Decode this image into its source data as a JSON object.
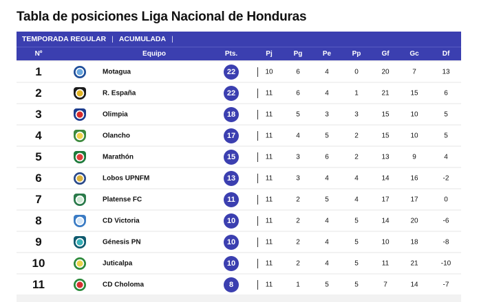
{
  "title": "Tabla de posiciones Liga Nacional de Honduras",
  "tabs": [
    {
      "label": "TEMPORADA REGULAR"
    },
    {
      "label": "ACUMULADA"
    }
  ],
  "tab_separator": "|",
  "columns": {
    "pos": "Nº",
    "team": "Equipo",
    "pts": "Pts.",
    "pj": "Pj",
    "pg": "Pg",
    "pe": "Pe",
    "pp": "Pp",
    "gf": "Gf",
    "gc": "Gc",
    "df": "Df"
  },
  "accent_color": "#3b3fb0",
  "rows": [
    {
      "pos": "1",
      "team": "Motagua",
      "pts": "22",
      "pj": "10",
      "pg": "6",
      "pe": "4",
      "pp": "0",
      "gf": "20",
      "gc": "7",
      "df": "13",
      "crest": {
        "c1": "#1f4f9a",
        "c2": "#6aa7de",
        "shape": "circle"
      }
    },
    {
      "pos": "2",
      "team": "R. España",
      "pts": "22",
      "pj": "11",
      "pg": "6",
      "pe": "4",
      "pp": "1",
      "gf": "21",
      "gc": "15",
      "df": "6",
      "crest": {
        "c1": "#1b1b1b",
        "c2": "#e2b422",
        "shape": "shield"
      }
    },
    {
      "pos": "3",
      "team": "Olimpia",
      "pts": "18",
      "pj": "11",
      "pg": "5",
      "pe": "3",
      "pp": "3",
      "gf": "15",
      "gc": "10",
      "df": "5",
      "crest": {
        "c1": "#1c3c8e",
        "c2": "#d62a2a",
        "shape": "shield"
      }
    },
    {
      "pos": "4",
      "team": "Olancho",
      "pts": "17",
      "pj": "11",
      "pg": "4",
      "pe": "5",
      "pp": "2",
      "gf": "15",
      "gc": "10",
      "df": "5",
      "crest": {
        "c1": "#3d8a3d",
        "c2": "#f2d24b",
        "shape": "shield"
      }
    },
    {
      "pos": "5",
      "team": "Marathón",
      "pts": "15",
      "pj": "11",
      "pg": "3",
      "pe": "6",
      "pp": "2",
      "gf": "13",
      "gc": "9",
      "df": "4",
      "crest": {
        "c1": "#1d7a3a",
        "c2": "#e03b3b",
        "shape": "shield"
      }
    },
    {
      "pos": "6",
      "team": "Lobos UPNFM",
      "pts": "13",
      "pj": "11",
      "pg": "3",
      "pe": "4",
      "pp": "4",
      "gf": "14",
      "gc": "16",
      "df": "-2",
      "crest": {
        "c1": "#2a4a8a",
        "c2": "#d9b23a",
        "shape": "circle"
      }
    },
    {
      "pos": "7",
      "team": "Platense FC",
      "pts": "11",
      "pj": "11",
      "pg": "2",
      "pe": "5",
      "pp": "4",
      "gf": "17",
      "gc": "17",
      "df": "0",
      "crest": {
        "c1": "#2a7a4a",
        "c2": "#cfe8d6",
        "shape": "shield"
      }
    },
    {
      "pos": "8",
      "team": "CD Victoria",
      "pts": "10",
      "pj": "11",
      "pg": "2",
      "pe": "4",
      "pp": "5",
      "gf": "14",
      "gc": "20",
      "df": "-6",
      "crest": {
        "c1": "#3a7bc4",
        "c2": "#d6e7f7",
        "shape": "shield"
      }
    },
    {
      "pos": "9",
      "team": "Génesis PN",
      "pts": "10",
      "pj": "11",
      "pg": "2",
      "pe": "4",
      "pp": "5",
      "gf": "10",
      "gc": "18",
      "df": "-8",
      "crest": {
        "c1": "#0f5a6e",
        "c2": "#38b1b8",
        "shape": "shield"
      }
    },
    {
      "pos": "10",
      "team": "Juticalpa",
      "pts": "10",
      "pj": "11",
      "pg": "2",
      "pe": "4",
      "pp": "5",
      "gf": "11",
      "gc": "21",
      "df": "-10",
      "crest": {
        "c1": "#2d8a3a",
        "c2": "#e8d34a",
        "shape": "circle"
      }
    },
    {
      "pos": "11",
      "team": "CD Choloma",
      "pts": "8",
      "pj": "11",
      "pg": "1",
      "pe": "5",
      "pp": "5",
      "gf": "7",
      "gc": "14",
      "df": "-7",
      "crest": {
        "c1": "#2a8a3a",
        "c2": "#d63030",
        "shape": "circle"
      }
    }
  ]
}
